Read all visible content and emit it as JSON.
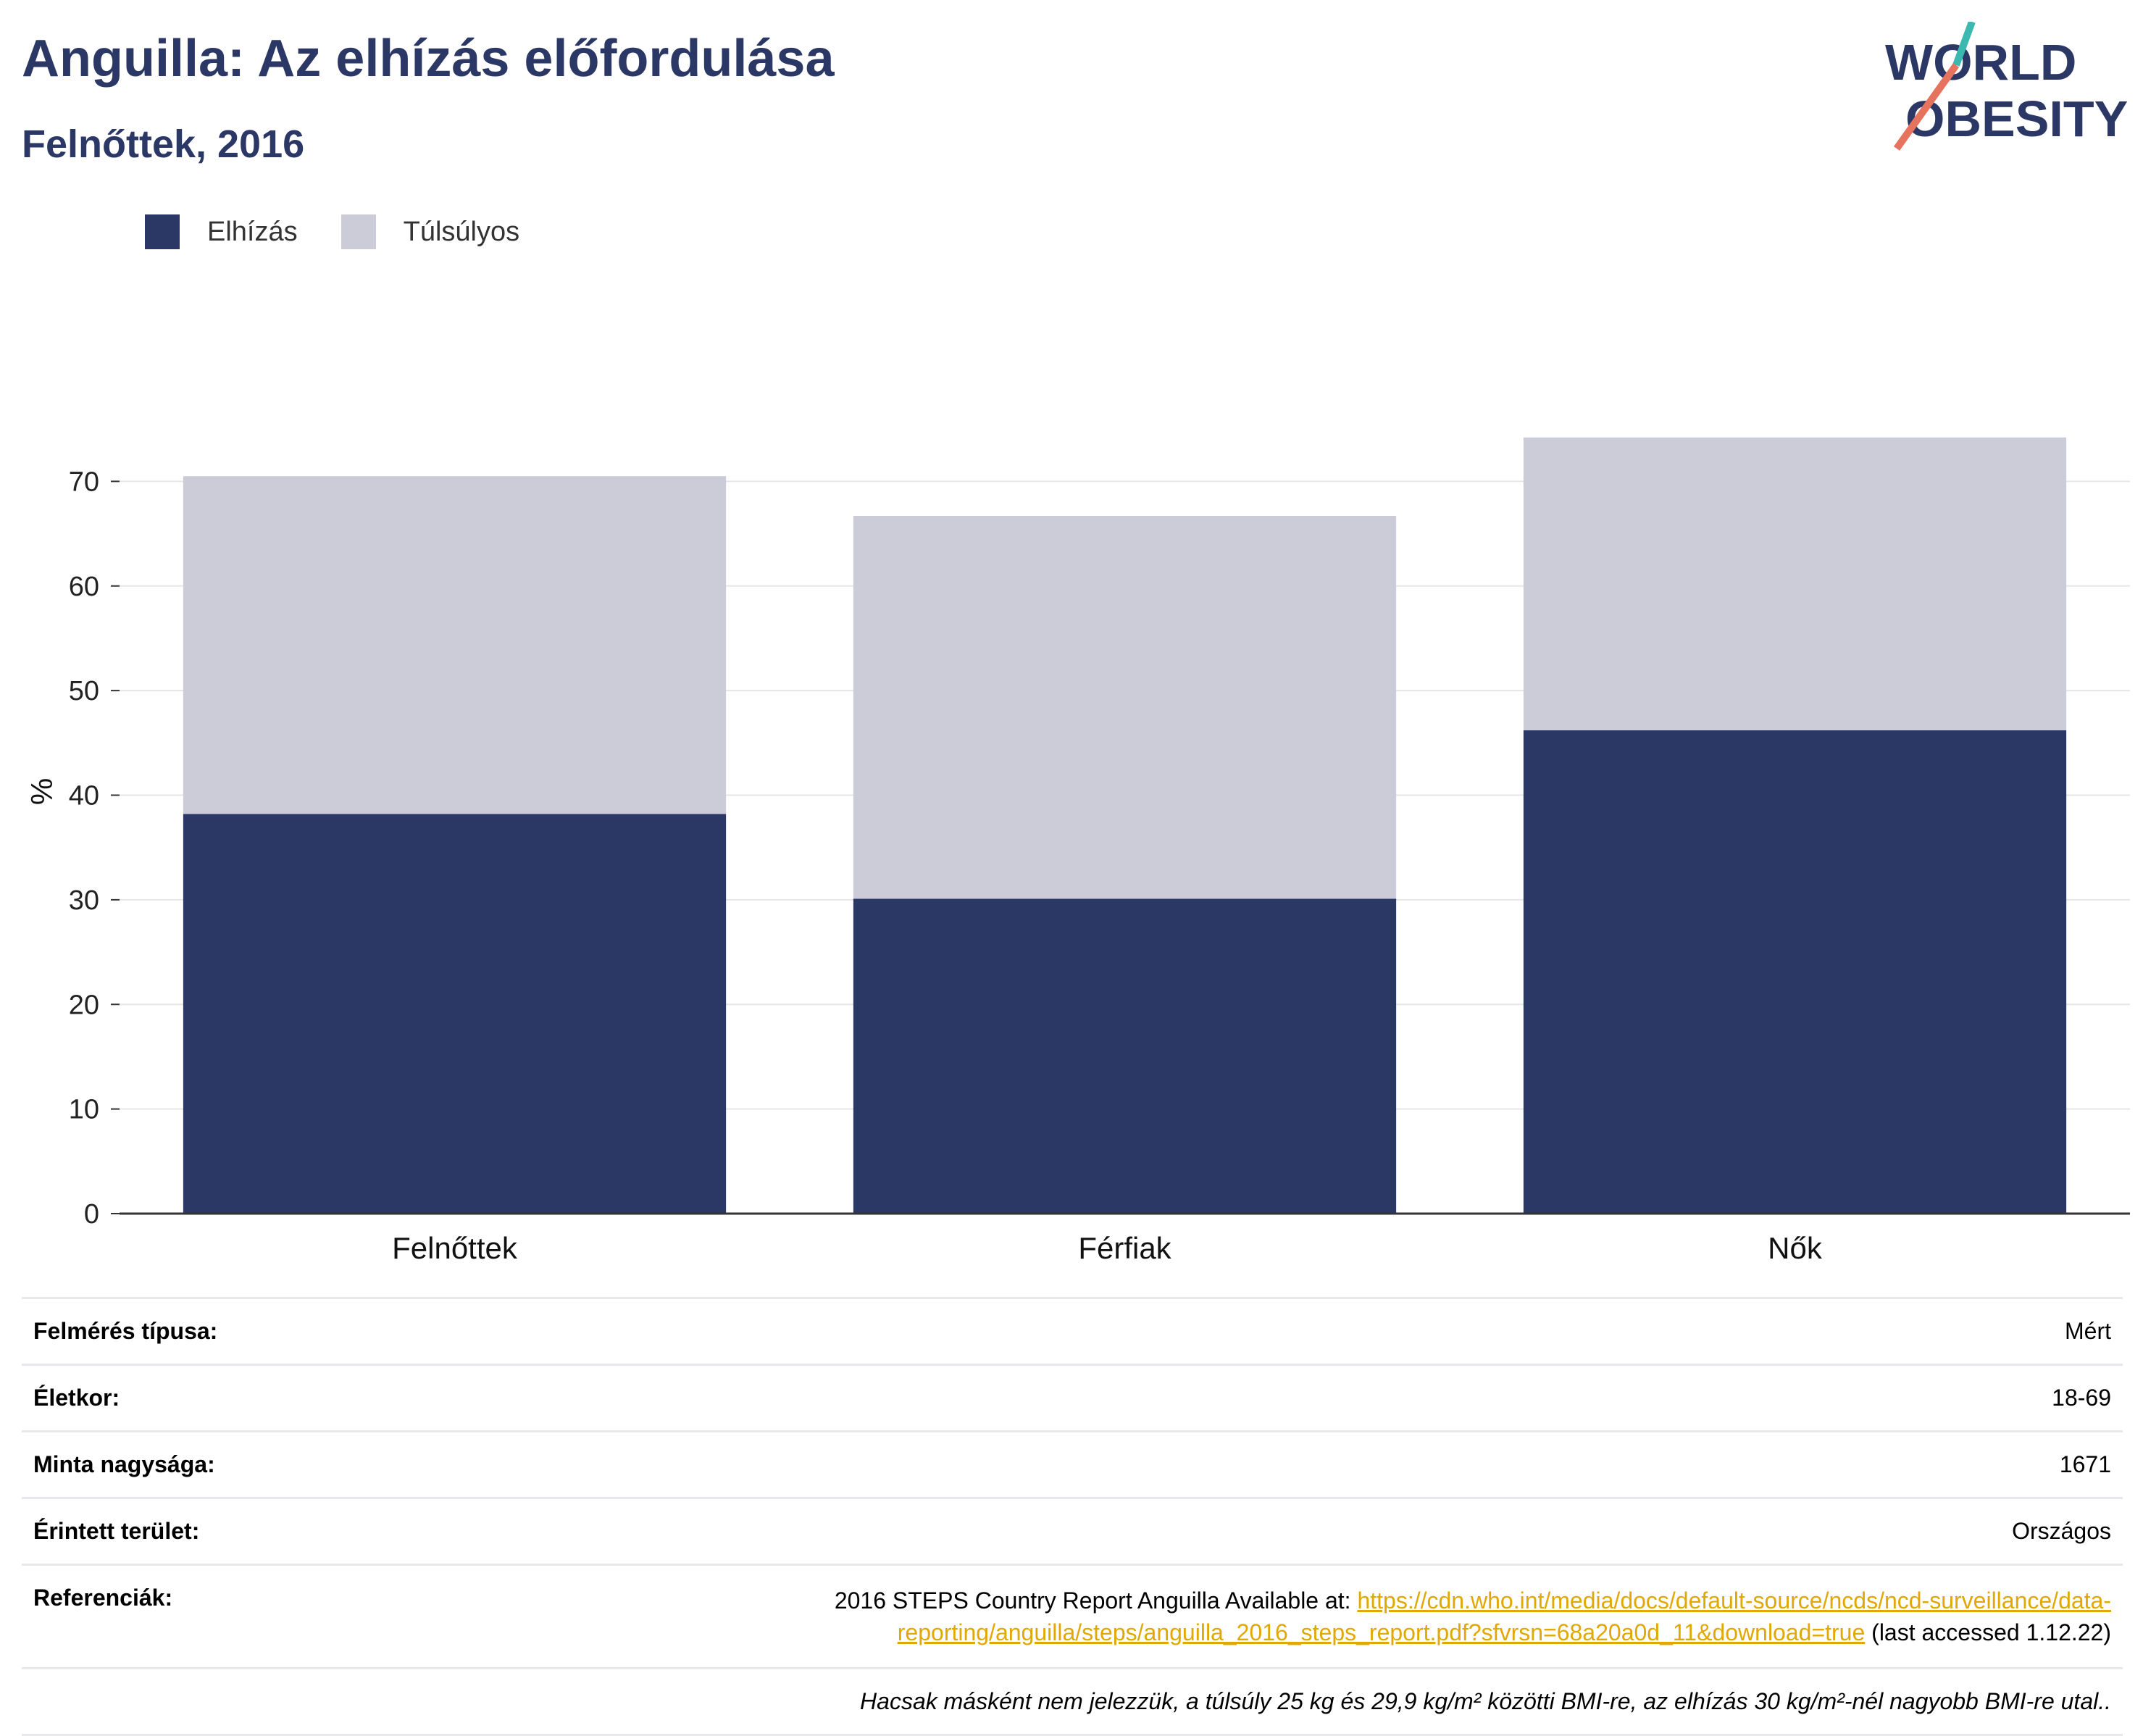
{
  "header": {
    "title": "Anguilla: Az elhízás előfordulása",
    "subtitle": "Felnőttek, 2016",
    "logo_line1": "WORLD",
    "logo_line2": "OBESITY"
  },
  "colors": {
    "obesity": "#2b3765",
    "overweight": "#cbccd8",
    "logo_teal": "#3bb8b0",
    "logo_coral": "#e6735e",
    "link": "#e0a800"
  },
  "chart_data": {
    "type": "bar",
    "stacked": true,
    "categories": [
      "Felnőttek",
      "Férfiak",
      "Nők"
    ],
    "series": [
      {
        "name": "Elhízás",
        "values": [
          38.2,
          30.1,
          46.2
        ]
      },
      {
        "name": "Túlsúlyos",
        "values": [
          32.3,
          36.6,
          28.0
        ]
      }
    ],
    "ylabel": "%",
    "ylim": [
      0,
      80
    ],
    "yticks": [
      0,
      10,
      20,
      30,
      40,
      50,
      60,
      70
    ],
    "grid": true,
    "legend": "top-left"
  },
  "info": {
    "survey_type": {
      "label": "Felmérés típusa:",
      "value": "Mért"
    },
    "age": {
      "label": "Életkor:",
      "value": "18-69"
    },
    "sample": {
      "label": "Minta nagysága:",
      "value": "1671"
    },
    "area": {
      "label": "Érintett terület:",
      "value": "Országos"
    },
    "references": {
      "label": "Referenciák:",
      "text_before": "2016 STEPS Country Report Anguilla Available at: ",
      "link_line1": "https://cdn.who.int/media/docs/default-source/ncds/ncd-surveillance/data-",
      "link_line2": "reporting/anguilla/steps/anguilla_2016_steps_report.pdf?sfvrsn=68a20a0d_11&download=true",
      "text_after": " (last accessed 1.12.22)"
    },
    "note": "Hacsak másként nem jelezzük, a túlsúly 25 kg és 29,9 kg/m² közötti BMI-re, az elhízás 30 kg/m²-nél nagyobb BMI-re utal.."
  }
}
